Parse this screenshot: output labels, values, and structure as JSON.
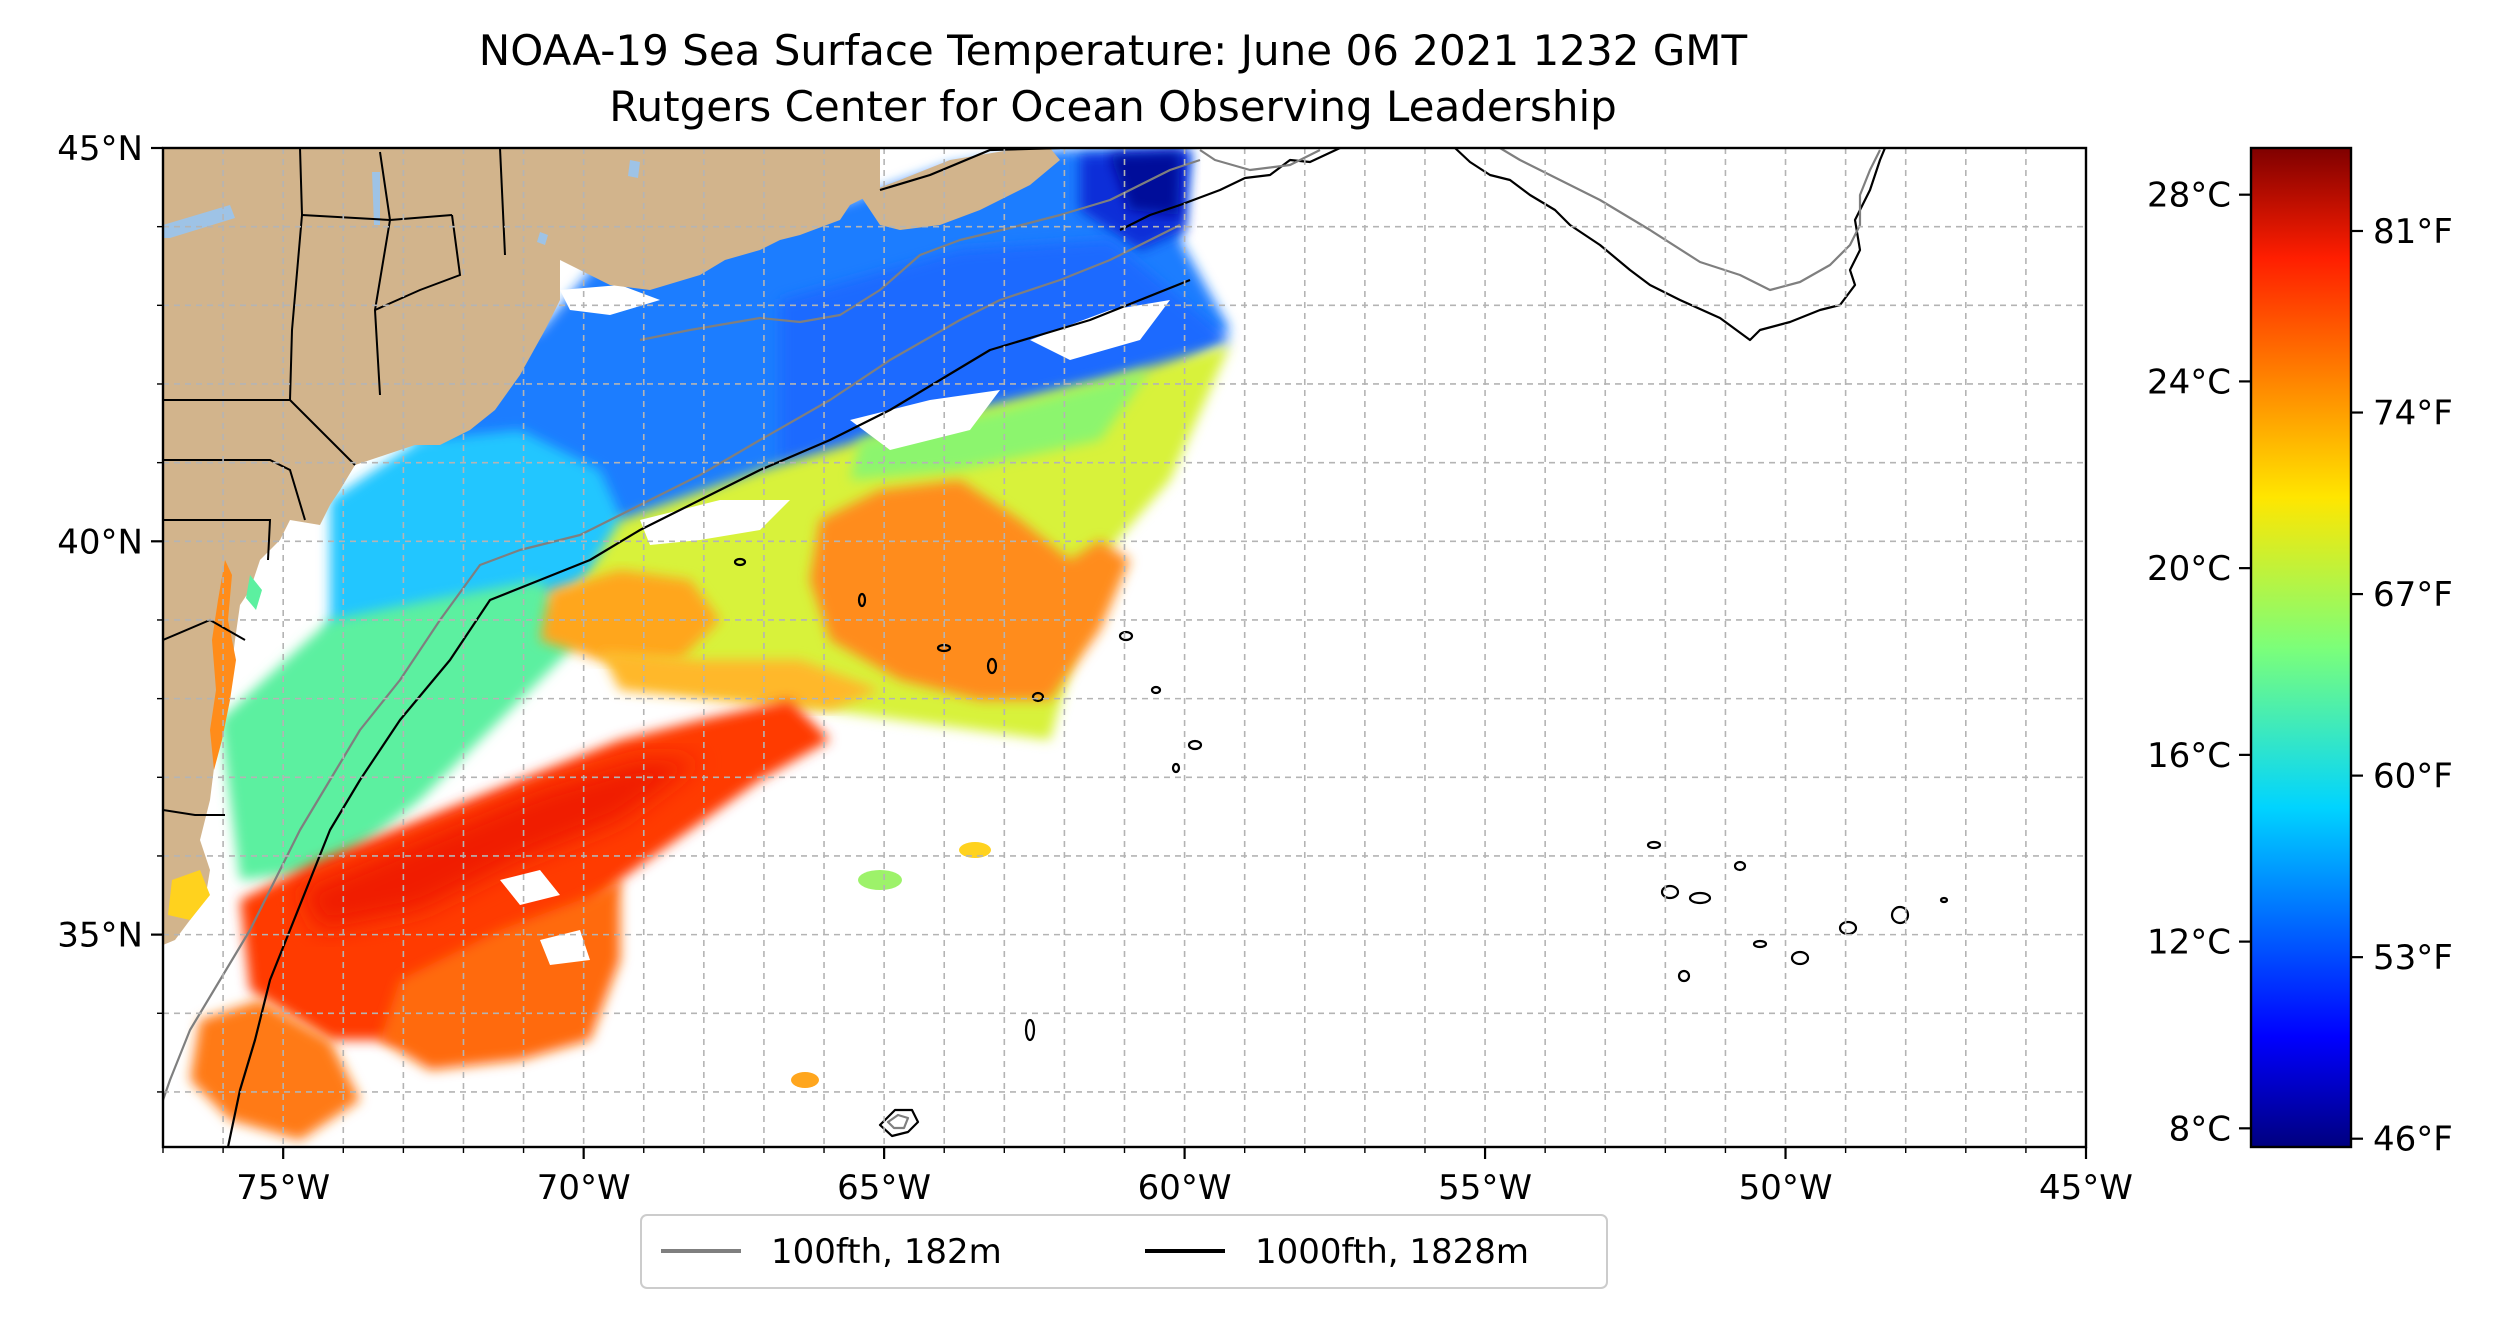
{
  "title": {
    "line1": "NOAA-19 Sea Surface Temperature: June 06 2021 1232 GMT",
    "line2": "Rutgers Center for Ocean Observing Leadership"
  },
  "map": {
    "lon_range": [
      -77,
      -45
    ],
    "lat_range": [
      32.3,
      45
    ],
    "lon_ticks": [
      {
        "value": -75,
        "label": "75°W"
      },
      {
        "value": -70,
        "label": "70°W"
      },
      {
        "value": -65,
        "label": "65°W"
      },
      {
        "value": -60,
        "label": "60°W"
      },
      {
        "value": -55,
        "label": "55°W"
      },
      {
        "value": -50,
        "label": "50°W"
      },
      {
        "value": -45,
        "label": "45°W"
      }
    ],
    "lat_ticks": [
      {
        "value": 45,
        "label": "45°N"
      },
      {
        "value": 40,
        "label": "40°N"
      },
      {
        "value": 35,
        "label": "35°N"
      }
    ],
    "gridlines": true,
    "land_color": "#d2b48c",
    "lake_color": "#9ec3e6"
  },
  "colorbar": {
    "colormap": "jet",
    "celsius_range": [
      7.6,
      29.0
    ],
    "celsius_ticks": [
      {
        "value": 8,
        "label": "8°C"
      },
      {
        "value": 12,
        "label": "12°C"
      },
      {
        "value": 16,
        "label": "16°C"
      },
      {
        "value": 20,
        "label": "20°C"
      },
      {
        "value": 24,
        "label": "24°C"
      },
      {
        "value": 28,
        "label": "28°C"
      }
    ],
    "fahrenheit_ticks": [
      {
        "value": 46,
        "label": "46°F"
      },
      {
        "value": 53,
        "label": "53°F"
      },
      {
        "value": 60,
        "label": "60°F"
      },
      {
        "value": 67,
        "label": "67°F"
      },
      {
        "value": 74,
        "label": "74°F"
      },
      {
        "value": 81,
        "label": "81°F"
      }
    ]
  },
  "legend": {
    "placement": "bottom-center",
    "items": [
      {
        "label": "100fth, 182m",
        "color": "#7f7f7f"
      },
      {
        "label": "1000fth, 1828m",
        "color": "#000000"
      }
    ]
  }
}
